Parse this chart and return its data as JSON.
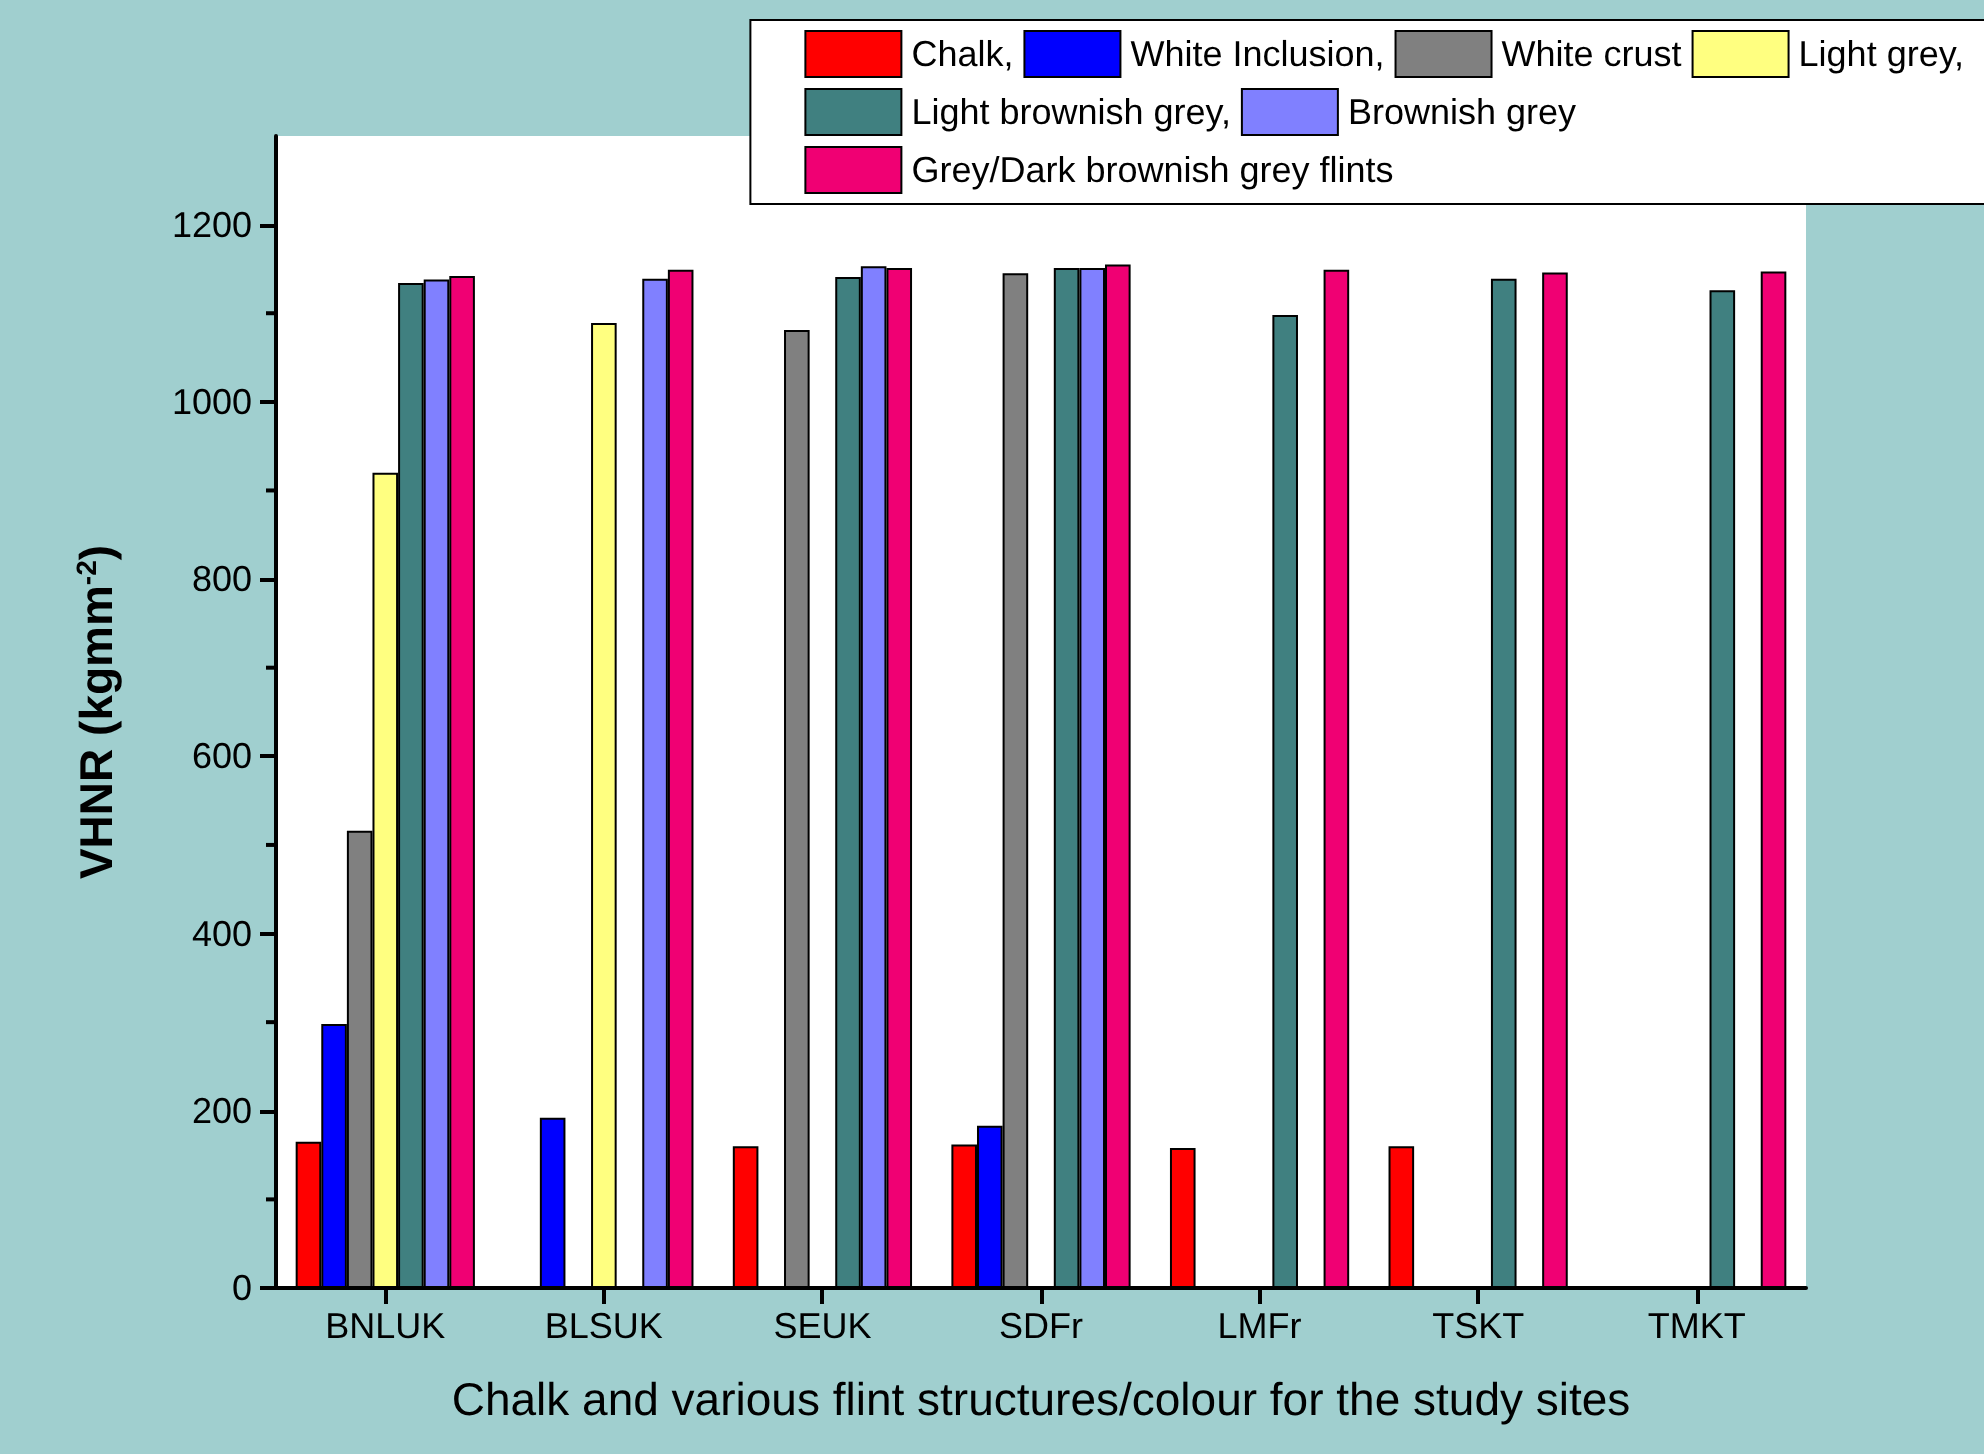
{
  "chart_data": {
    "type": "bar",
    "xlabel": "Chalk and various flint structures/colour for the study sites",
    "ylabel": "VHNR (kgmm$^{-2}$)",
    "categories": [
      "BNLUK",
      "BLSUK",
      "SEUK",
      "SDFr",
      "LMFr",
      "TSKT",
      "TMKT"
    ],
    "series": [
      {
        "name": "Chalk,",
        "color": "#ff0000",
        "values": [
          165,
          null,
          160,
          162,
          158,
          160,
          null
        ]
      },
      {
        "name": "White Inclusion,",
        "color": "#0000ff",
        "values": [
          298,
          192,
          null,
          183,
          null,
          null,
          null
        ]
      },
      {
        "name": "White crust",
        "color": "#808080",
        "values": [
          516,
          null,
          1081,
          1145,
          null,
          null,
          null
        ]
      },
      {
        "name": "Light grey,",
        "color": "#ffff80",
        "values": [
          920,
          1089,
          null,
          null,
          null,
          null,
          null
        ]
      },
      {
        "name": "Light brownish grey,",
        "color": "#408080",
        "values": [
          1134,
          null,
          1141,
          1151,
          1098,
          1139,
          1126
        ]
      },
      {
        "name": "Brownish grey",
        "color": "#8080ff",
        "values": [
          1138,
          1139,
          1153,
          1151,
          null,
          null,
          null
        ]
      },
      {
        "name": "Grey/Dark brownish grey flints",
        "color": "#f00073",
        "values": [
          1142,
          1149,
          1151,
          1155,
          1149,
          1146,
          1147
        ]
      }
    ],
    "ylim": [
      0,
      1300
    ],
    "yticks": [
      0,
      200,
      400,
      600,
      800,
      1000,
      1200
    ],
    "grid": false,
    "legend": "top right"
  }
}
